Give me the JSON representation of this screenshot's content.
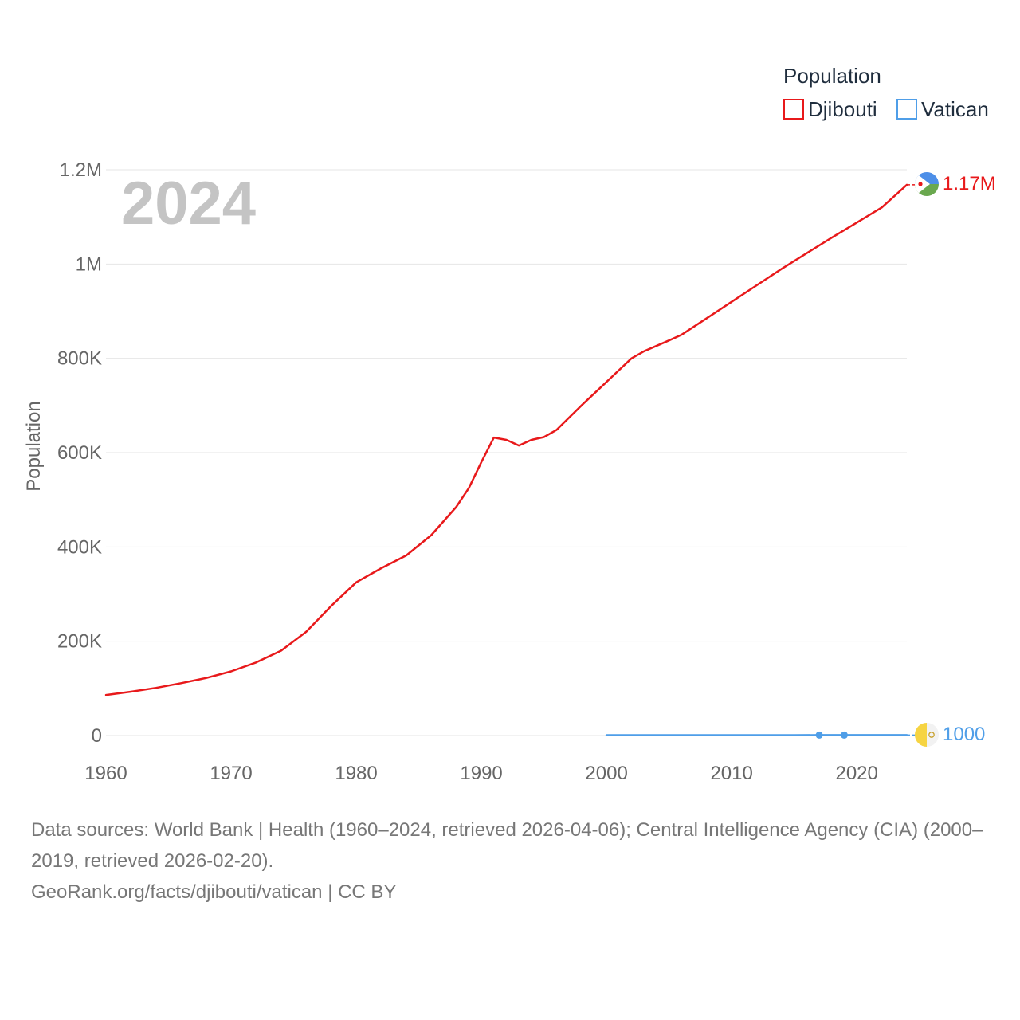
{
  "chart_data": {
    "type": "line",
    "year_overlay": "2024",
    "ylabel": "Population",
    "ylim": [
      0,
      1200000
    ],
    "xlim": [
      1960,
      2024
    ],
    "x_ticks": [
      1960,
      1970,
      1980,
      1990,
      2000,
      2010,
      2020
    ],
    "x_tick_labels": [
      "1960",
      "1970",
      "1980",
      "1990",
      "2000",
      "2010",
      "2020"
    ],
    "y_ticks": [
      0,
      200000,
      400000,
      600000,
      800000,
      1000000,
      1200000
    ],
    "y_tick_labels": [
      "0",
      "200K",
      "400K",
      "600K",
      "800K",
      "1M",
      "1.2M"
    ],
    "legend": {
      "title": "Population",
      "position": "top-right"
    },
    "series": [
      {
        "name": "Djibouti",
        "color": "#e8191b",
        "end_label": "1.17M",
        "flag_icon": "djibouti-flag-icon",
        "x": [
          1960,
          1962,
          1964,
          1966,
          1968,
          1970,
          1972,
          1974,
          1976,
          1978,
          1980,
          1982,
          1984,
          1986,
          1988,
          1989,
          1990,
          1991,
          1992,
          1993,
          1994,
          1995,
          1996,
          1998,
          2000,
          2002,
          2003,
          2005,
          2006,
          2008,
          2010,
          2012,
          2014,
          2016,
          2018,
          2020,
          2022,
          2024
        ],
        "values": [
          86000,
          93000,
          101000,
          111000,
          122000,
          136000,
          155000,
          180000,
          220000,
          275000,
          325000,
          355000,
          382000,
          425000,
          485000,
          525000,
          580000,
          632000,
          627000,
          615000,
          627000,
          633000,
          648000,
          700000,
          750000,
          800000,
          815000,
          838000,
          850000,
          885000,
          920000,
          955000,
          990000,
          1023000,
          1056000,
          1088000,
          1120000,
          1168000
        ]
      },
      {
        "name": "Vatican",
        "color": "#4f9ee8",
        "end_label": "1000",
        "flag_icon": "vatican-flag-icon",
        "x": [
          2000,
          2005,
          2010,
          2015,
          2017,
          2019,
          2024
        ],
        "values": [
          880,
          920,
          830,
          800,
          1000,
          1000,
          1000
        ],
        "markers": [
          2017,
          2019
        ]
      }
    ]
  },
  "footer": {
    "sources": "Data sources: World Bank | Health (1960–2024, retrieved 2026-04-06); Central Intelligence Agency (CIA) (2000–2019, retrieved 2026-02-20).",
    "credit": "GeoRank.org/facts/djibouti/vatican | CC BY"
  }
}
